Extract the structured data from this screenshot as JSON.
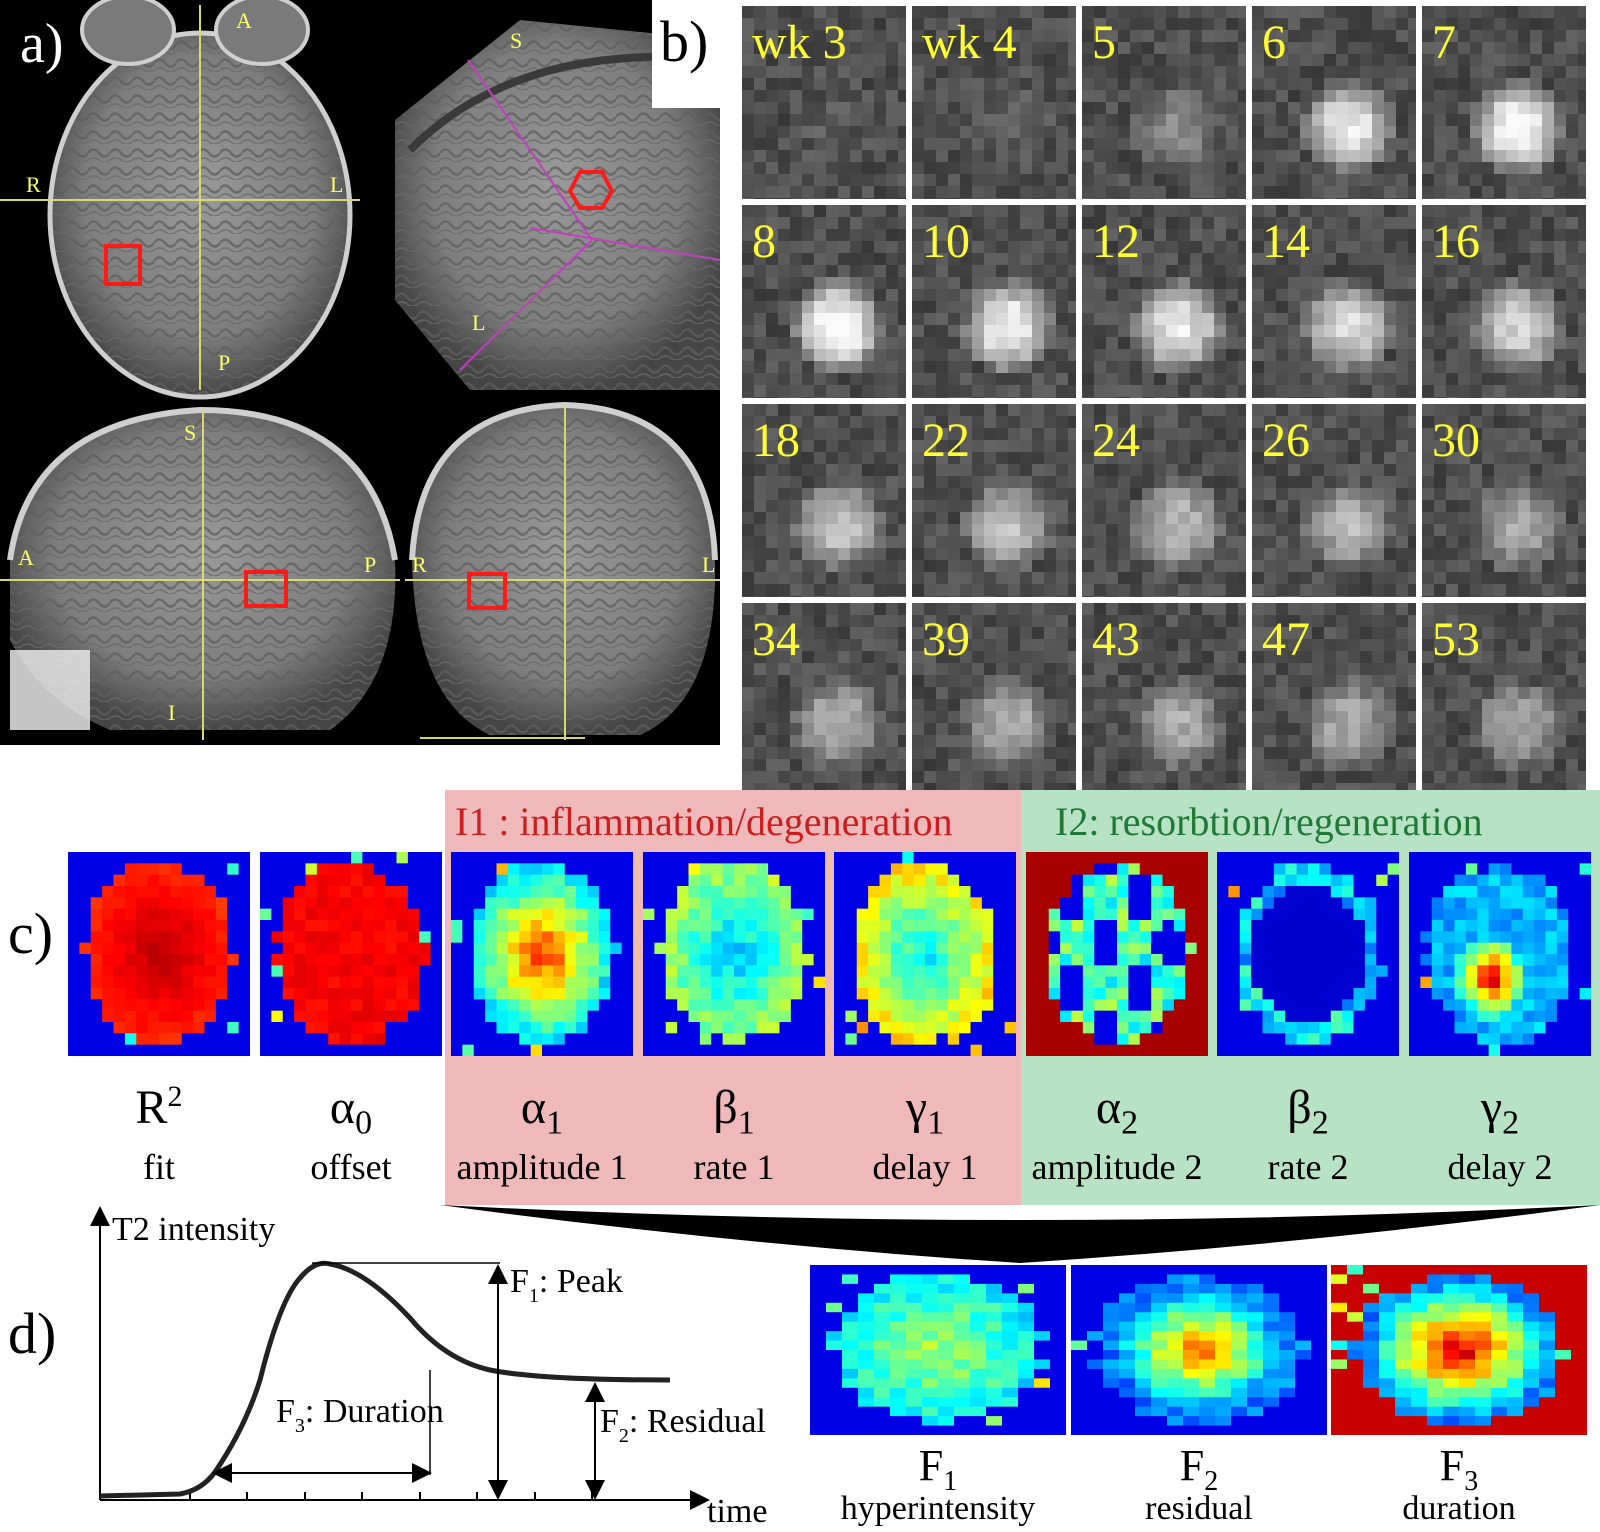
{
  "panel_labels": {
    "a": "a)",
    "b": "b)",
    "c": "c)",
    "d": "d)"
  },
  "panel_a": {
    "axial": {
      "top": "A",
      "bottom": "P",
      "left": "R",
      "right": "L"
    },
    "oblique": {
      "top": "S",
      "bottom": "L"
    },
    "sagittal": {
      "top": "S",
      "bottom": "I",
      "left": "A",
      "right": "P"
    },
    "coronal": {
      "left": "R",
      "right": "L"
    }
  },
  "panel_b": {
    "weeks": [
      "wk 3",
      "wk 4",
      "5",
      "6",
      "7",
      "8",
      "10",
      "12",
      "14",
      "16",
      "18",
      "22",
      "24",
      "26",
      "30",
      "34",
      "39",
      "43",
      "47",
      "53"
    ]
  },
  "panel_c": {
    "groups": [
      {
        "title": "I1 : inflammation/degeneration",
        "color": "#cc1e1e",
        "bg": "#efb9b9"
      },
      {
        "title": "I2: resorbtion/regeneration",
        "color": "#1f7a3a",
        "bg": "#b8e2c4"
      }
    ],
    "maps": [
      {
        "symbol": "R",
        "sup": "2",
        "sub": "",
        "desc": "fit"
      },
      {
        "symbol": "α",
        "sup": "",
        "sub": "0",
        "desc": "offset"
      },
      {
        "symbol": "α",
        "sup": "",
        "sub": "1",
        "desc": "amplitude 1"
      },
      {
        "symbol": "β",
        "sup": "",
        "sub": "1",
        "desc": "rate 1"
      },
      {
        "symbol": "γ",
        "sup": "",
        "sub": "1",
        "desc": "delay 1"
      },
      {
        "symbol": "α",
        "sup": "",
        "sub": "2",
        "desc": "amplitude 2"
      },
      {
        "symbol": "β",
        "sup": "",
        "sub": "2",
        "desc": "rate 2"
      },
      {
        "symbol": "γ",
        "sup": "",
        "sub": "2",
        "desc": "delay 2"
      }
    ]
  },
  "panel_d": {
    "y_axis_label": "T2 intensity",
    "x_axis_label": "time",
    "annotations": {
      "peak": {
        "label": "F",
        "sub": "1",
        "rest": ": Peak"
      },
      "residual": {
        "label": "F",
        "sub": "2",
        "rest": ": Residual"
      },
      "duration": {
        "label": "F",
        "sub": "3",
        "rest": ": Duration"
      }
    },
    "feature_maps": [
      {
        "symbol": "F",
        "sub": "1",
        "desc": "hyperintensity"
      },
      {
        "symbol": "F",
        "sub": "2",
        "desc": "residual"
      },
      {
        "symbol": "F",
        "sub": "3",
        "desc": "duration"
      }
    ]
  },
  "colors": {
    "label_yellow": "#ffff33",
    "roi_red": "#ff1a1a",
    "crosshair": "#d8d870",
    "guide_magenta": "#c040c0"
  }
}
